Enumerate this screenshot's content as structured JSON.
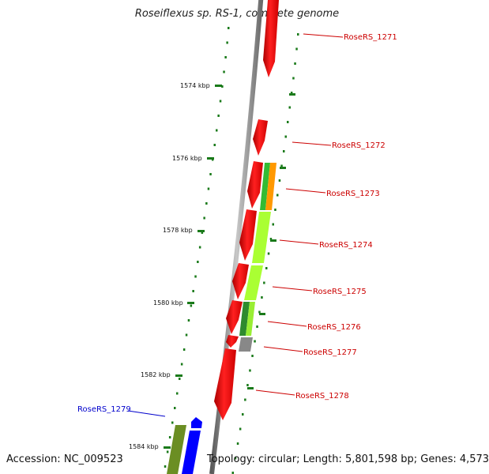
{
  "title": "Roseiflexus sp. RS-1, complete genome",
  "footer": {
    "accession": "Accession: NC_009523",
    "summary": "Topology: circular; Length: 5,801,598 bp; Genes: 4,573"
  },
  "ruler_labels": [
    "1574 kbp",
    "1576 kbp",
    "1578 kbp",
    "1580 kbp",
    "1582 kbp",
    "1584 kbp"
  ],
  "gene_labels": [
    {
      "text": "RoseRS_1271",
      "color": "#cc0000"
    },
    {
      "text": "RoseRS_1272",
      "color": "#cc0000"
    },
    {
      "text": "RoseRS_1273",
      "color": "#cc0000"
    },
    {
      "text": "RoseRS_1274",
      "color": "#cc0000"
    },
    {
      "text": "RoseRS_1275",
      "color": "#cc0000"
    },
    {
      "text": "RoseRS_1276",
      "color": "#cc0000"
    },
    {
      "text": "RoseRS_1277",
      "color": "#cc0000"
    },
    {
      "text": "RoseRS_1278",
      "color": "#cc0000"
    },
    {
      "text": "RoseRS_1279",
      "color": "#0000cc"
    }
  ],
  "colors": {
    "gene_red": "#ff0000",
    "gene_blue": "#0000ff",
    "backbone": "#8a8a8a",
    "ruler_green": "#1a7a1a",
    "cog_lime": "#aaff33",
    "cog_green": "#33bb33",
    "cog_orange": "#ff9900",
    "cog_gray": "#888888",
    "cog_olive": "#6b8e23"
  }
}
